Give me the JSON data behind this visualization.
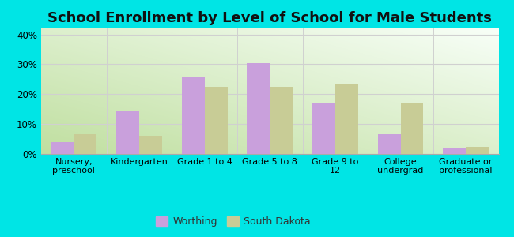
{
  "title": "School Enrollment by Level of School for Male Students",
  "categories": [
    "Nursery,\npreschool",
    "Kindergarten",
    "Grade 1 to 4",
    "Grade 5 to 8",
    "Grade 9 to\n12",
    "College\nundergrad",
    "Graduate or\nprofessional"
  ],
  "worthing": [
    4,
    14.5,
    26,
    30.5,
    17,
    7,
    2
  ],
  "south_dakota": [
    7,
    6,
    22.5,
    22.5,
    23.5,
    17,
    2.5
  ],
  "worthing_color": "#c9a0dc",
  "sd_color": "#c8cc96",
  "background_outer": "#00e5e5",
  "grad_bottom_left": "#c8e6a0",
  "grad_top_right": "#f0fff0",
  "ylabel_ticks": [
    "0%",
    "10%",
    "20%",
    "30%",
    "40%"
  ],
  "yticks": [
    0,
    10,
    20,
    30,
    40
  ],
  "ylim": [
    0,
    42
  ],
  "legend_labels": [
    "Worthing",
    "South Dakota"
  ],
  "title_fontsize": 13,
  "bar_width": 0.35,
  "grid_color": "#d0d0d0"
}
